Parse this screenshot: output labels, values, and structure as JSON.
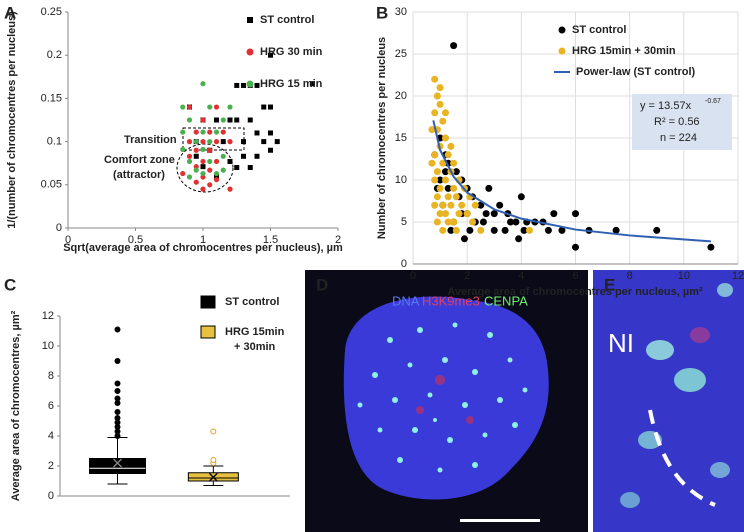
{
  "chart_data": [
    {
      "panel": "A",
      "type": "scatter",
      "x_label": "Sqrt(average area of chromocentres per nucleus), µm",
      "y_label": "1/(number of chromocentres per nucleus)",
      "xlim": [
        0,
        2
      ],
      "xticks": [
        0,
        0.5,
        1,
        1.5,
        2
      ],
      "ylim": [
        0,
        0.25
      ],
      "yticks": [
        0,
        0.05,
        0.1,
        0.15,
        0.2,
        0.25
      ],
      "grid": false,
      "annotations": [
        "Transition",
        "Comfort zone",
        "(attractor)"
      ],
      "series": [
        {
          "name": "ST control",
          "color": "#000000",
          "marker": "square",
          "x": [
            1.5,
            1.81,
            1.25,
            1.3,
            1.35,
            1.4,
            1.45,
            1.5,
            1.2,
            1.25,
            1.35,
            1.4,
            1.3,
            1.45,
            1.5,
            1.5,
            1.55,
            1.4,
            1.3,
            1.25,
            1.35,
            1.2,
            1.1,
            1.0,
            0.9,
            0.95,
            1.05,
            1.15,
            1.0,
            0.95,
            1.1
          ],
          "values": [
            0.2,
            0.167,
            0.165,
            0.165,
            0.165,
            0.165,
            0.14,
            0.14,
            0.125,
            0.125,
            0.125,
            0.11,
            0.1,
            0.1,
            0.11,
            0.09,
            0.1,
            0.083,
            0.083,
            0.07,
            0.07,
            0.077,
            0.125,
            0.125,
            0.14,
            0.1,
            0.09,
            0.1,
            0.071,
            0.083,
            0.06
          ]
        },
        {
          "name": "HRG 30 min",
          "color": "#e03030",
          "marker": "circle",
          "x": [
            0.9,
            1.1,
            1.0,
            0.95,
            1.05,
            1.15,
            0.9,
            1.0,
            1.1,
            1.2,
            0.95,
            1.05,
            0.9,
            1.0,
            1.1,
            0.95,
            1.05,
            0.85,
            1.0,
            1.1,
            0.95,
            1.05,
            1.2,
            1.0
          ],
          "values": [
            0.14,
            0.14,
            0.125,
            0.111,
            0.111,
            0.111,
            0.1,
            0.1,
            0.1,
            0.1,
            0.09,
            0.09,
            0.083,
            0.077,
            0.077,
            0.071,
            0.067,
            0.063,
            0.059,
            0.056,
            0.053,
            0.05,
            0.045,
            0.045
          ]
        },
        {
          "name": "HRG 15 min",
          "color": "#4caf50",
          "marker": "circle",
          "x": [
            0.85,
            1.0,
            1.05,
            1.2,
            0.9,
            1.15,
            0.85,
            1.0,
            1.1,
            0.95,
            1.05,
            0.85,
            1.0,
            1.15,
            0.9,
            1.05,
            0.95,
            1.15,
            0.9,
            1.0,
            1.1
          ],
          "values": [
            0.14,
            0.167,
            0.14,
            0.14,
            0.125,
            0.125,
            0.111,
            0.111,
            0.111,
            0.1,
            0.1,
            0.091,
            0.091,
            0.083,
            0.077,
            0.077,
            0.067,
            0.067,
            0.059,
            0.063,
            0.063
          ]
        }
      ]
    },
    {
      "panel": "B",
      "type": "scatter",
      "x_label": "Average area  of chromocentres per nucleus, µm²",
      "y_label": "Number of chromocentres per nucleus",
      "xlim": [
        0,
        12
      ],
      "xticks": [
        0,
        2,
        4,
        6,
        8,
        10,
        12
      ],
      "ylim": [
        0,
        30
      ],
      "yticks": [
        0,
        5,
        10,
        15,
        20,
        25,
        30
      ],
      "grid": true,
      "annotations": [
        "y = 13.57x",
        "-0.67",
        "R² = 0.56",
        "n = 224"
      ],
      "series": [
        {
          "name": "ST control",
          "color": "#000000",
          "marker": "circle",
          "x": [
            1.5,
            1.0,
            1.2,
            1.3,
            1.6,
            1.8,
            2.0,
            2.2,
            2.5,
            2.8,
            3.0,
            3.2,
            3.5,
            3.8,
            4.0,
            4.2,
            4.5,
            5.0,
            5.2,
            5.5,
            6.0,
            6.0,
            6.5,
            7.5,
            9.0,
            11.0,
            1.0,
            1.3,
            1.7,
            2.0,
            2.3,
            2.6,
            3.0,
            3.4,
            3.9,
            4.1,
            4.8,
            1.1,
            1.5,
            1.8,
            2.1,
            0.8,
            0.9,
            2.7,
            3.6,
            1.2,
            1.9,
            1.4
          ],
          "values": [
            26,
            15,
            13,
            12,
            11,
            10,
            9,
            8,
            7,
            9,
            6,
            7,
            6,
            5,
            8,
            5,
            5,
            4,
            6,
            4,
            6,
            2,
            4,
            4,
            4,
            2,
            10,
            9,
            8,
            6,
            5,
            5,
            4,
            4,
            3,
            4,
            5,
            7,
            5,
            6,
            4,
            13,
            9,
            6,
            5,
            11,
            3,
            4
          ]
        },
        {
          "name": "HRG 15min + 30min",
          "color": "#e8b422",
          "marker": "circle",
          "x": [
            0.8,
            0.9,
            1.0,
            0.8,
            1.1,
            0.9,
            1.2,
            1.0,
            0.8,
            1.3,
            1.1,
            0.9,
            1.4,
            1.2,
            0.8,
            1.0,
            1.5,
            1.3,
            0.9,
            1.6,
            1.1,
            1.4,
            1.8,
            1.0,
            1.2,
            1.7,
            2.0,
            1.3,
            1.5,
            0.9,
            2.2,
            1.1,
            1.6,
            2.5,
            4.3,
            1.0,
            1.2,
            0.7,
            1.4,
            1.5,
            1.7,
            1.9,
            2.1,
            2.3,
            0.7,
            0.8
          ],
          "values": [
            22,
            20,
            19,
            18,
            17,
            16,
            15,
            14,
            13,
            13,
            12,
            11,
            11,
            10,
            10,
            9,
            9,
            8,
            8,
            8,
            7,
            7,
            7,
            6,
            6,
            6,
            6,
            5,
            5,
            5,
            5,
            4,
            4,
            4,
            4,
            21,
            18,
            16,
            14,
            12,
            10,
            9,
            8,
            7,
            12,
            7
          ]
        },
        {
          "name": "Power-law (ST control)",
          "color": "#2f5fb0",
          "marker": "line",
          "x": [
            0.75,
            1,
            1.5,
            2,
            3,
            4,
            6,
            8,
            11
          ],
          "values": [
            17.1,
            13.57,
            10.4,
            8.5,
            6.5,
            5.4,
            4.1,
            3.4,
            2.7
          ]
        }
      ]
    },
    {
      "panel": "C",
      "type": "box",
      "y_label": "Average area  of chromocentres, µm²",
      "ylim": [
        0,
        12
      ],
      "yticks": [
        0,
        2,
        4,
        6,
        8,
        10,
        12
      ],
      "grid": false,
      "series": [
        {
          "name": "ST control",
          "color": "#000000",
          "min": 0.8,
          "q1": 1.5,
          "median": 1.85,
          "q3": 2.5,
          "max": 3.9,
          "mean": 2.2,
          "outliers": [
            4.0,
            4.3,
            4.6,
            4.9,
            5.2,
            5.6,
            6.2,
            6.5,
            7.0,
            7.5,
            9.0,
            11.1
          ]
        },
        {
          "name": "HRG 15min",
          "name_line2": "+ 30min",
          "color": "#e8c040",
          "min": 0.7,
          "q1": 1.0,
          "median": 1.2,
          "q3": 1.55,
          "max": 2.0,
          "mean": 1.25,
          "outliers": [
            2.2,
            2.4,
            4.3
          ]
        }
      ]
    }
  ],
  "images": [
    {
      "panel": "D",
      "labels": [
        "DNA",
        "H3K9me3",
        "CENPA"
      ]
    },
    {
      "panel": "E",
      "labels": [
        "NI"
      ]
    }
  ]
}
